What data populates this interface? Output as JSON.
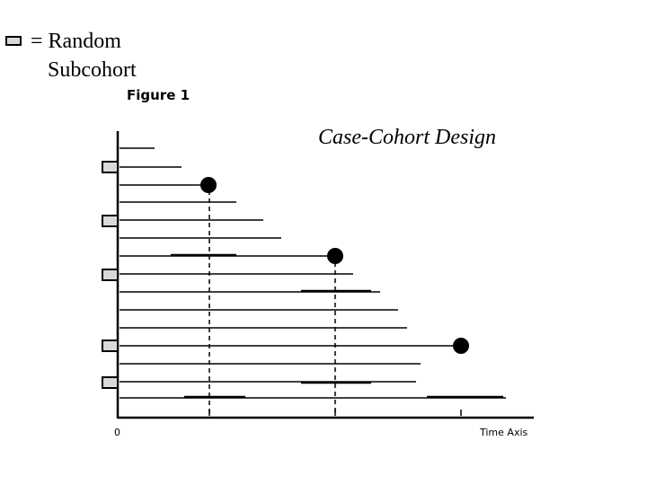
{
  "legend": {
    "line1": "= Random",
    "line2": "Subcohort",
    "box_color": "#d9d9d9",
    "box_icon": "subcohort-box-icon"
  },
  "figure_label": "Figure 1",
  "title": "Case-Cohort Design",
  "axis": {
    "origin_label": "0",
    "x_label": "Time Axis"
  },
  "colors": {
    "ink": "#000000",
    "subcohort_fill": "#d9d9d9"
  }
}
